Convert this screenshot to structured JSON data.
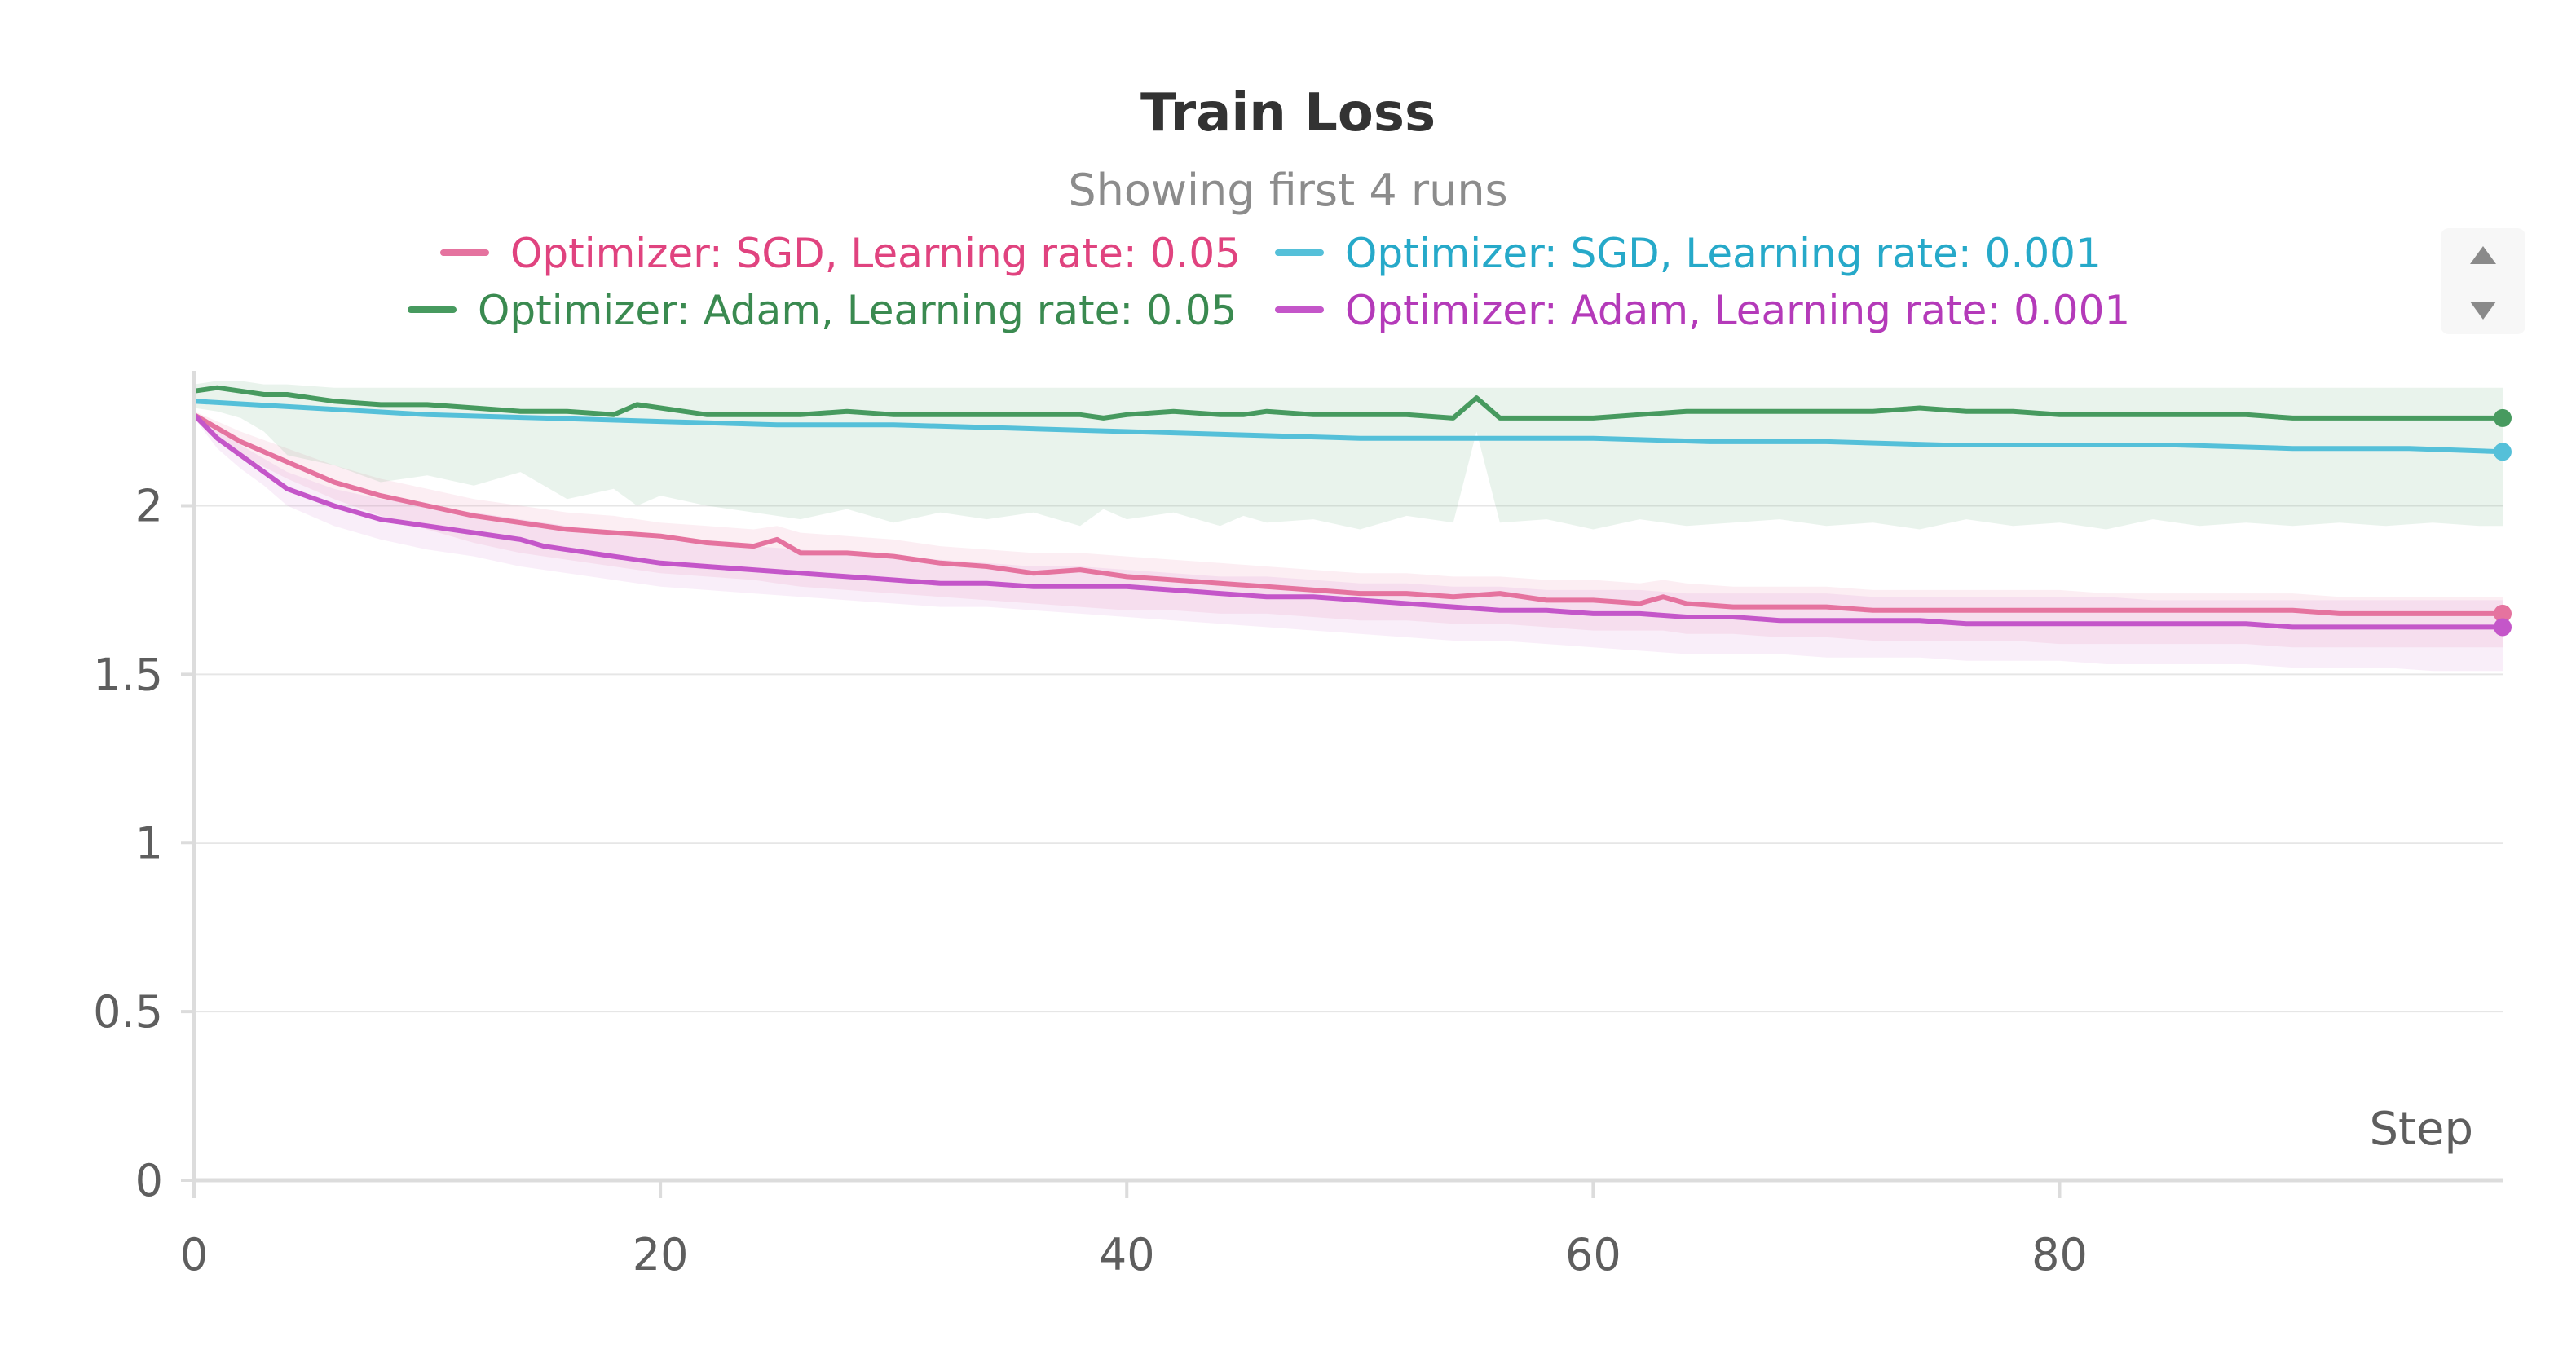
{
  "chart": {
    "title": "Train Loss",
    "subtitle": "Showing first 4 runs"
  },
  "legend_scroll": {
    "up_icon": "triangle-up-icon",
    "down_icon": "triangle-down-icon"
  },
  "chart_data": {
    "type": "line",
    "title": "Train Loss",
    "subtitle": "Showing first 4 runs",
    "xlabel": "Step",
    "ylabel": "",
    "xlim": [
      0,
      99
    ],
    "ylim": [
      0,
      2.4
    ],
    "xticks": [
      0,
      20,
      40,
      60,
      80
    ],
    "yticks": [
      0,
      0.5,
      1,
      1.5,
      2
    ],
    "xtick_labels": [
      "0",
      "20",
      "40",
      "60",
      "80"
    ],
    "ytick_labels": [
      "0",
      "0.5",
      "1",
      "1.5",
      "2"
    ],
    "grid": "horizontal",
    "legend_position": "top",
    "series": [
      {
        "name": "Optimizer: SGD, Learning rate: 0.05",
        "color": "#e5739f",
        "band_color": "#e5739f",
        "x": [
          0,
          2,
          4,
          6,
          8,
          10,
          12,
          14,
          16,
          18,
          20,
          22,
          24,
          25,
          26,
          28,
          30,
          32,
          34,
          36,
          38,
          40,
          42,
          44,
          46,
          48,
          50,
          52,
          54,
          56,
          58,
          60,
          62,
          63,
          64,
          66,
          68,
          70,
          72,
          74,
          76,
          78,
          80,
          82,
          84,
          86,
          88,
          90,
          92,
          94,
          96,
          98,
          99
        ],
        "y": [
          2.27,
          2.19,
          2.13,
          2.07,
          2.03,
          2,
          1.97,
          1.95,
          1.93,
          1.92,
          1.91,
          1.89,
          1.88,
          1.9,
          1.86,
          1.86,
          1.85,
          1.83,
          1.82,
          1.8,
          1.81,
          1.79,
          1.78,
          1.77,
          1.76,
          1.75,
          1.74,
          1.74,
          1.73,
          1.74,
          1.72,
          1.72,
          1.71,
          1.73,
          1.71,
          1.7,
          1.7,
          1.7,
          1.69,
          1.69,
          1.69,
          1.69,
          1.69,
          1.69,
          1.69,
          1.69,
          1.69,
          1.69,
          1.68,
          1.68,
          1.68,
          1.68,
          1.68
        ],
        "band_lower": [
          2.26,
          2.15,
          2.08,
          2.02,
          1.97,
          1.93,
          1.89,
          1.86,
          1.84,
          1.82,
          1.8,
          1.79,
          1.78,
          1.77,
          1.76,
          1.75,
          1.74,
          1.73,
          1.72,
          1.71,
          1.7,
          1.69,
          1.69,
          1.68,
          1.68,
          1.67,
          1.66,
          1.66,
          1.65,
          1.65,
          1.64,
          1.63,
          1.63,
          1.63,
          1.62,
          1.62,
          1.61,
          1.61,
          1.6,
          1.6,
          1.6,
          1.6,
          1.59,
          1.59,
          1.59,
          1.59,
          1.59,
          1.58,
          1.58,
          1.58,
          1.58,
          1.58,
          1.58
        ],
        "band_upper": [
          2.28,
          2.22,
          2.17,
          2.12,
          2.08,
          2.05,
          2.02,
          2,
          1.98,
          1.97,
          1.95,
          1.94,
          1.93,
          1.94,
          1.92,
          1.91,
          1.9,
          1.88,
          1.87,
          1.86,
          1.86,
          1.85,
          1.84,
          1.83,
          1.82,
          1.81,
          1.8,
          1.8,
          1.79,
          1.79,
          1.78,
          1.78,
          1.77,
          1.78,
          1.77,
          1.76,
          1.76,
          1.76,
          1.75,
          1.75,
          1.75,
          1.75,
          1.75,
          1.74,
          1.74,
          1.74,
          1.74,
          1.74,
          1.73,
          1.73,
          1.73,
          1.73,
          1.73
        ]
      },
      {
        "name": "Optimizer: SGD, Learning rate: 0.001",
        "color": "#55c0d9",
        "x": [
          0,
          5,
          10,
          15,
          20,
          25,
          30,
          35,
          40,
          45,
          50,
          55,
          60,
          65,
          70,
          75,
          80,
          85,
          90,
          95,
          99
        ],
        "y": [
          2.31,
          2.29,
          2.27,
          2.26,
          2.25,
          2.24,
          2.24,
          2.23,
          2.22,
          2.21,
          2.2,
          2.2,
          2.2,
          2.19,
          2.19,
          2.18,
          2.18,
          2.18,
          2.17,
          2.17,
          2.16
        ]
      },
      {
        "name": "Optimizer: Adam, Learning rate: 0.05",
        "color": "#479a5f",
        "band_color": "#479a5f",
        "x": [
          0,
          1,
          2,
          3,
          4,
          6,
          8,
          10,
          12,
          14,
          16,
          18,
          19,
          20,
          22,
          24,
          26,
          28,
          30,
          32,
          34,
          36,
          38,
          39,
          40,
          42,
          44,
          45,
          46,
          48,
          50,
          52,
          54,
          55,
          56,
          58,
          60,
          62,
          64,
          66,
          68,
          70,
          72,
          74,
          76,
          78,
          80,
          82,
          84,
          86,
          88,
          90,
          92,
          94,
          96,
          98,
          99
        ],
        "y": [
          2.34,
          2.35,
          2.34,
          2.33,
          2.33,
          2.31,
          2.3,
          2.3,
          2.29,
          2.28,
          2.28,
          2.27,
          2.3,
          2.29,
          2.27,
          2.27,
          2.27,
          2.28,
          2.27,
          2.27,
          2.27,
          2.27,
          2.27,
          2.26,
          2.27,
          2.28,
          2.27,
          2.27,
          2.28,
          2.27,
          2.27,
          2.27,
          2.26,
          2.32,
          2.26,
          2.26,
          2.26,
          2.27,
          2.28,
          2.28,
          2.28,
          2.28,
          2.28,
          2.29,
          2.28,
          2.28,
          2.27,
          2.27,
          2.27,
          2.27,
          2.27,
          2.26,
          2.26,
          2.26,
          2.26,
          2.26,
          2.26
        ],
        "band_lower": [
          2.29,
          2.28,
          2.26,
          2.22,
          2.15,
          2.12,
          2.07,
          2.09,
          2.06,
          2.1,
          2.02,
          2.05,
          2.0,
          2.03,
          2.0,
          1.98,
          1.96,
          1.99,
          1.95,
          1.98,
          1.96,
          1.98,
          1.94,
          1.99,
          1.96,
          1.98,
          1.94,
          1.97,
          1.95,
          1.96,
          1.93,
          1.97,
          1.95,
          2.22,
          1.95,
          1.96,
          1.93,
          1.96,
          1.94,
          1.95,
          1.96,
          1.94,
          1.95,
          1.93,
          1.96,
          1.94,
          1.95,
          1.93,
          1.96,
          1.94,
          1.95,
          1.94,
          1.95,
          1.94,
          1.95,
          1.94,
          1.94
        ],
        "band_upper": [
          2.36,
          2.37,
          2.37,
          2.36,
          2.36,
          2.35,
          2.35,
          2.35,
          2.35,
          2.35,
          2.35,
          2.35,
          2.35,
          2.35,
          2.35,
          2.35,
          2.35,
          2.35,
          2.35,
          2.35,
          2.35,
          2.35,
          2.35,
          2.35,
          2.35,
          2.35,
          2.35,
          2.35,
          2.35,
          2.35,
          2.35,
          2.35,
          2.35,
          2.35,
          2.35,
          2.35,
          2.35,
          2.35,
          2.35,
          2.35,
          2.35,
          2.35,
          2.35,
          2.35,
          2.35,
          2.35,
          2.35,
          2.35,
          2.35,
          2.35,
          2.35,
          2.35,
          2.35,
          2.35,
          2.35,
          2.35,
          2.35
        ]
      },
      {
        "name": "Optimizer: Adam, Learning rate: 0.001",
        "color": "#c456c9",
        "band_color": "#c456c9",
        "x": [
          0,
          1,
          2,
          3,
          4,
          6,
          8,
          10,
          12,
          14,
          15,
          16,
          18,
          20,
          22,
          24,
          26,
          28,
          30,
          32,
          34,
          36,
          38,
          40,
          42,
          44,
          46,
          48,
          50,
          52,
          54,
          56,
          58,
          60,
          62,
          64,
          66,
          68,
          70,
          72,
          74,
          76,
          78,
          80,
          82,
          84,
          86,
          88,
          90,
          92,
          94,
          96,
          98,
          99
        ],
        "y": [
          2.27,
          2.2,
          2.15,
          2.1,
          2.05,
          2.0,
          1.96,
          1.94,
          1.92,
          1.9,
          1.88,
          1.87,
          1.85,
          1.83,
          1.82,
          1.81,
          1.8,
          1.79,
          1.78,
          1.77,
          1.77,
          1.76,
          1.76,
          1.76,
          1.75,
          1.74,
          1.73,
          1.73,
          1.72,
          1.71,
          1.7,
          1.69,
          1.69,
          1.68,
          1.68,
          1.67,
          1.67,
          1.66,
          1.66,
          1.66,
          1.66,
          1.65,
          1.65,
          1.65,
          1.65,
          1.65,
          1.65,
          1.65,
          1.64,
          1.64,
          1.64,
          1.64,
          1.64,
          1.64
        ],
        "band_lower": [
          2.26,
          2.17,
          2.11,
          2.06,
          2.0,
          1.94,
          1.9,
          1.87,
          1.85,
          1.82,
          1.81,
          1.8,
          1.78,
          1.76,
          1.75,
          1.74,
          1.73,
          1.72,
          1.71,
          1.7,
          1.7,
          1.69,
          1.68,
          1.67,
          1.66,
          1.65,
          1.64,
          1.63,
          1.62,
          1.61,
          1.6,
          1.6,
          1.59,
          1.58,
          1.57,
          1.56,
          1.56,
          1.56,
          1.55,
          1.55,
          1.55,
          1.54,
          1.54,
          1.54,
          1.53,
          1.53,
          1.53,
          1.53,
          1.52,
          1.52,
          1.52,
          1.51,
          1.51,
          1.51
        ],
        "band_upper": [
          2.28,
          2.23,
          2.18,
          2.14,
          2.1,
          2.05,
          2.02,
          2.0,
          1.98,
          1.96,
          1.95,
          1.94,
          1.92,
          1.9,
          1.89,
          1.88,
          1.87,
          1.86,
          1.85,
          1.84,
          1.83,
          1.82,
          1.82,
          1.81,
          1.8,
          1.79,
          1.79,
          1.78,
          1.77,
          1.77,
          1.76,
          1.76,
          1.75,
          1.75,
          1.75,
          1.74,
          1.74,
          1.74,
          1.74,
          1.73,
          1.73,
          1.73,
          1.73,
          1.73,
          1.73,
          1.72,
          1.72,
          1.72,
          1.72,
          1.72,
          1.72,
          1.72,
          1.72,
          1.72
        ]
      }
    ]
  }
}
